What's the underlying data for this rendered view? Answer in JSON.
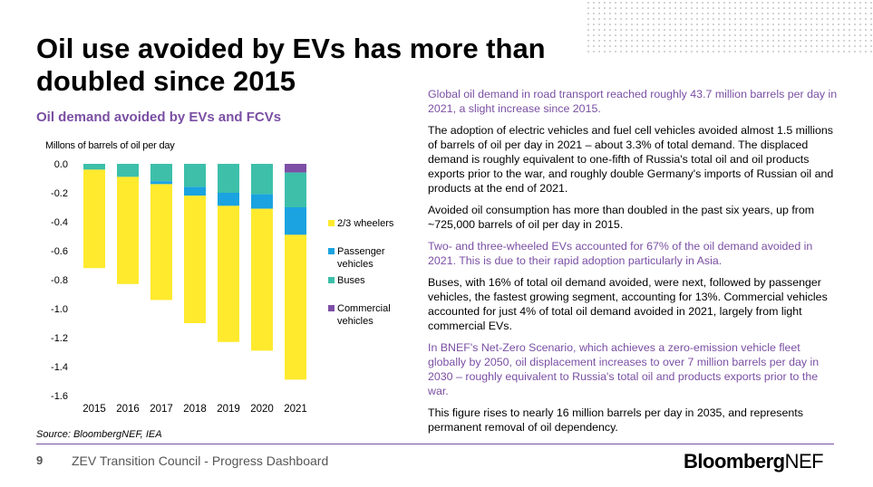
{
  "slide": {
    "title": "Oil use avoided by EVs has more than doubled since 2015",
    "subtitle": "Oil demand avoided by EVs and FCVs",
    "source": "Source: BloombergNEF, IEA",
    "page_number": "9",
    "footer_title": "ZEV Transition Council - Progress Dashboard",
    "brand_bold": "Bloomberg",
    "brand_light": "NEF"
  },
  "paragraphs": [
    {
      "text": "Global oil demand in road transport reached roughly 43.7 million barrels per day in 2021, a slight increase since 2015.",
      "color": "#7a4fa3"
    },
    {
      "text": "The adoption of electric vehicles and fuel cell vehicles avoided almost 1.5 millions of barrels of oil per day in 2021 – about 3.3% of total demand. The displaced demand is roughly equivalent to one-fifth of Russia's total oil and oil products exports prior to the war, and roughly double Germany's imports of Russian oil and products at the end of 2021.",
      "color": "#000000"
    },
    {
      "text": "Avoided oil consumption has more than doubled in the past six years, up from ~725,000 barrels of oil per day in 2015.",
      "color": "#000000"
    },
    {
      "text": "Two- and three-wheeled EVs accounted for 67% of the oil demand avoided in 2021. This is due to their rapid adoption particularly in Asia.",
      "color": "#7a4fa3"
    },
    {
      "text": "Buses, with 16% of total oil demand avoided, were next, followed by passenger vehicles, the fastest growing segment, accounting for 13%. Commercial vehicles accounted for just 4% of total oil demand avoided in 2021, largely from light commercial EVs.",
      "color": "#000000"
    },
    {
      "text": "In BNEF's Net-Zero Scenario, which achieves a zero-emission vehicle fleet globally by 2050, oil displacement increases to over 7 million barrels per day in 2030 – roughly equivalent to Russia's total oil and products exports prior to the war.",
      "color": "#7a4fa3"
    },
    {
      "text": "This figure rises to nearly 16 million barrels per day in 2035, and represents permanent removal of oil dependency.",
      "color": "#000000"
    }
  ],
  "chart_data": {
    "type": "bar",
    "stacked": true,
    "title": "Oil demand avoided by EVs and FCVs",
    "ylabel": "Millons of barrels of oil per day",
    "xlabel": "",
    "categories": [
      "2015",
      "2016",
      "2017",
      "2018",
      "2019",
      "2020",
      "2021"
    ],
    "ylim": [
      -1.6,
      0.0
    ],
    "yticks": [
      0.0,
      -0.2,
      -0.4,
      -0.6,
      -0.8,
      -1.0,
      -1.2,
      -1.4,
      -1.6
    ],
    "ytick_labels": [
      "0.0",
      "-0.2",
      "-0.4",
      "-0.6",
      "-0.8",
      "-1.0",
      "-1.2",
      "-1.4",
      "-1.6"
    ],
    "grid": false,
    "legend_position": "right",
    "series": [
      {
        "name": "Commercial vehicles",
        "color": "#7d4fa6",
        "values": [
          0.0,
          0.0,
          0.0,
          0.0,
          0.0,
          0.0,
          -0.06
        ]
      },
      {
        "name": "Buses",
        "color": "#3dbfaa",
        "values": [
          -0.04,
          -0.09,
          -0.12,
          -0.16,
          -0.2,
          -0.21,
          -0.24
        ]
      },
      {
        "name": "Passenger vehicles",
        "color": "#1aa3e0",
        "values": [
          0.0,
          0.0,
          -0.02,
          -0.06,
          -0.09,
          -0.1,
          -0.19
        ]
      },
      {
        "name": "2/3 wheelers",
        "color": "#ffea2e",
        "values": [
          -0.68,
          -0.74,
          -0.8,
          -0.88,
          -0.94,
          -0.98,
          -1.0
        ]
      }
    ],
    "legend_order": [
      "2/3 wheelers",
      "Passenger vehicles",
      "Buses",
      "Commercial vehicles"
    ]
  }
}
